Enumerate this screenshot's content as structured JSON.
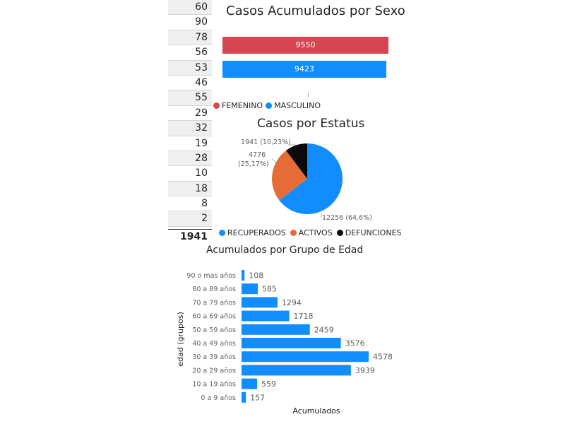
{
  "left_list": {
    "values": [
      "60",
      "90",
      "78",
      "56",
      "53",
      "46",
      "55",
      "29",
      "32",
      "19",
      "28",
      "10",
      "18",
      "8",
      "2"
    ],
    "total": "1941"
  },
  "sexo": {
    "title": "Casos Acumulados por Sexo",
    "legend": [
      {
        "label": "FEMENINO",
        "color": "#d64550"
      },
      {
        "label": "MASCULINO",
        "color": "#118dff"
      }
    ]
  },
  "estatus": {
    "title": "Casos por Estatus",
    "legend": [
      {
        "label": "RECUPERADOS",
        "color": "#118dff"
      },
      {
        "label": "ACTIVOS",
        "color": "#e66c37"
      },
      {
        "label": "DEFUNCIONES",
        "color": "#0b0b0b"
      }
    ],
    "labels": {
      "defunciones": "1941 (10,23%)",
      "activos_1": "4776",
      "activos_2": "(25,17%)",
      "recuperados": "12256 (64,6%)"
    }
  },
  "edad": {
    "title": "Acumulados por Grupo de Edad",
    "ylabel": "edad (grupos)",
    "xlabel": "Acumulados"
  },
  "chart_data": [
    {
      "type": "bar",
      "orientation": "horizontal",
      "title": "Casos Acumulados por Sexo",
      "categories": [
        "FEMENINO",
        "MASCULINO"
      ],
      "values": [
        9550,
        9423
      ],
      "colors": [
        "#d64550",
        "#118dff"
      ],
      "legend": "bottom-left"
    },
    {
      "type": "pie",
      "title": "Casos por Estatus",
      "categories": [
        "RECUPERADOS",
        "ACTIVOS",
        "DEFUNCIONES"
      ],
      "values": [
        12256,
        4776,
        1941
      ],
      "percents": [
        64.6,
        25.17,
        10.23
      ],
      "colors": [
        "#118dff",
        "#e66c37",
        "#0b0b0b"
      ],
      "legend": "bottom"
    },
    {
      "type": "bar",
      "orientation": "horizontal",
      "title": "Acumulados por Grupo de Edad",
      "xlabel": "Acumulados",
      "ylabel": "edad (grupos)",
      "categories": [
        "90 o mas años",
        "80 a 89 años",
        "70 a 79 años",
        "60 a 69 años",
        "50 a 59 años",
        "40 a 49 años",
        "30 a 39 años",
        "20 a 29 años",
        "10 a 19 años",
        "0 a 9 años"
      ],
      "values": [
        108,
        585,
        1294,
        1718,
        2459,
        3576,
        4578,
        3939,
        559,
        157
      ],
      "color": "#118dff"
    }
  ]
}
